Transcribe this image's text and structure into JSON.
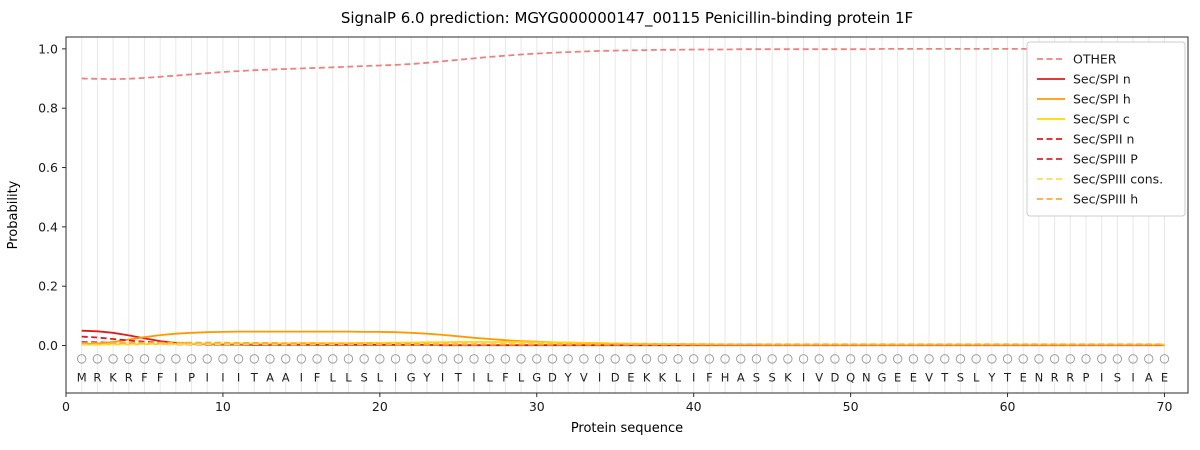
{
  "chart_data": {
    "type": "line",
    "title": "SignalP 6.0 prediction: MGYG000000147_00115 Penicillin-binding protein 1F",
    "xlabel": "Protein sequence",
    "ylabel": "Probability",
    "xlim": [
      0,
      71.5
    ],
    "ylim": [
      -0.16,
      1.04
    ],
    "xticks": [
      0,
      10,
      20,
      30,
      40,
      50,
      60,
      70
    ],
    "yticks": [
      0.0,
      0.2,
      0.4,
      0.6,
      0.8,
      1.0
    ],
    "grid": "vertical-per-residue",
    "grid_color": "#e8e8e8",
    "legend_position": "upper right",
    "x_start": 1,
    "marker_y": -0.045,
    "letter_y": -0.107,
    "sequence": "MRKRFFIPIIITAAIFLLSLIGYITILFLGDYVIDEKKLIFHASSKIVDQNGEEVTSLYTENRRPISIAE",
    "series": [
      {
        "name": "OTHER",
        "color": "#f08080",
        "dashed": true,
        "values": [
          0.9,
          0.899,
          0.898,
          0.899,
          0.902,
          0.906,
          0.91,
          0.914,
          0.918,
          0.922,
          0.925,
          0.928,
          0.93,
          0.932,
          0.934,
          0.936,
          0.938,
          0.94,
          0.942,
          0.944,
          0.946,
          0.949,
          0.953,
          0.958,
          0.963,
          0.968,
          0.973,
          0.977,
          0.981,
          0.984,
          0.987,
          0.989,
          0.991,
          0.993,
          0.994,
          0.995,
          0.996,
          0.997,
          0.997,
          0.998,
          0.998,
          0.998,
          0.999,
          0.999,
          0.999,
          0.999,
          0.999,
          0.999,
          0.999,
          0.999,
          0.999,
          1.0,
          1.0,
          1.0,
          1.0,
          1.0,
          1.0,
          1.0,
          1.0,
          1.0,
          1.0,
          1.0,
          1.0,
          1.0,
          1.0,
          1.0,
          1.0,
          1.0,
          1.0,
          1.0
        ]
      },
      {
        "name": "Sec/SPI n",
        "color": "#e31a1c",
        "dashed": false,
        "values": [
          0.05,
          0.048,
          0.043,
          0.034,
          0.024,
          0.015,
          0.009,
          0.006,
          0.004,
          0.003,
          0.003,
          0.002,
          0.002,
          0.002,
          0.002,
          0.002,
          0.002,
          0.002,
          0.002,
          0.002,
          0.002,
          0.002,
          0.002,
          0.001,
          0.001,
          0.001,
          0.001,
          0.001,
          0.001,
          0.001,
          0.001,
          0.001,
          0.001,
          0.001,
          0.001,
          0.001,
          0.001,
          0.001,
          0.001,
          0.001,
          0.001,
          0.001,
          0.001,
          0.001,
          0.001,
          0.001,
          0.001,
          0.001,
          0.001,
          0.001,
          0.001,
          0.001,
          0.001,
          0.001,
          0.001,
          0.001,
          0.001,
          0.001,
          0.001,
          0.001,
          0.001,
          0.001,
          0.001,
          0.001,
          0.001,
          0.001,
          0.001,
          0.001,
          0.001,
          0.001
        ]
      },
      {
        "name": "Sec/SPI h",
        "color": "#ff9900",
        "dashed": false,
        "values": [
          0.004,
          0.007,
          0.012,
          0.02,
          0.028,
          0.035,
          0.04,
          0.043,
          0.045,
          0.046,
          0.047,
          0.047,
          0.047,
          0.047,
          0.047,
          0.047,
          0.047,
          0.047,
          0.046,
          0.046,
          0.045,
          0.043,
          0.04,
          0.036,
          0.031,
          0.026,
          0.022,
          0.018,
          0.015,
          0.013,
          0.011,
          0.01,
          0.009,
          0.008,
          0.007,
          0.006,
          0.006,
          0.005,
          0.005,
          0.004,
          0.004,
          0.003,
          0.003,
          0.003,
          0.002,
          0.002,
          0.002,
          0.002,
          0.002,
          0.002,
          0.002,
          0.002,
          0.002,
          0.002,
          0.002,
          0.002,
          0.002,
          0.002,
          0.002,
          0.002,
          0.002,
          0.002,
          0.002,
          0.002,
          0.002,
          0.002,
          0.002,
          0.002,
          0.002,
          0.002
        ]
      },
      {
        "name": "Sec/SPI c",
        "color": "#ffd700",
        "dashed": false,
        "values": [
          0.003,
          0.003,
          0.004,
          0.004,
          0.005,
          0.005,
          0.006,
          0.006,
          0.006,
          0.007,
          0.007,
          0.007,
          0.007,
          0.007,
          0.008,
          0.008,
          0.008,
          0.008,
          0.009,
          0.009,
          0.01,
          0.01,
          0.011,
          0.011,
          0.012,
          0.012,
          0.012,
          0.012,
          0.012,
          0.011,
          0.011,
          0.01,
          0.009,
          0.008,
          0.007,
          0.006,
          0.006,
          0.005,
          0.005,
          0.004,
          0.004,
          0.003,
          0.003,
          0.003,
          0.003,
          0.003,
          0.003,
          0.003,
          0.003,
          0.003,
          0.003,
          0.003,
          0.003,
          0.003,
          0.003,
          0.003,
          0.003,
          0.003,
          0.003,
          0.003,
          0.003,
          0.003,
          0.003,
          0.003,
          0.003,
          0.003,
          0.003,
          0.003,
          0.003,
          0.003
        ]
      },
      {
        "name": "Sec/SPII n",
        "color": "#e31a1c",
        "dashed": true,
        "values": [
          0.03,
          0.027,
          0.022,
          0.017,
          0.013,
          0.01,
          0.008,
          0.007,
          0.006,
          0.005,
          0.005,
          0.004,
          0.004,
          0.004,
          0.003,
          0.003,
          0.003,
          0.003,
          0.003,
          0.003,
          0.002,
          0.002,
          0.002,
          0.002,
          0.002,
          0.002,
          0.002,
          0.002,
          0.002,
          0.002,
          0.002,
          0.002,
          0.002,
          0.002,
          0.002,
          0.002,
          0.002,
          0.002,
          0.002,
          0.002,
          0.002,
          0.002,
          0.002,
          0.002,
          0.002,
          0.002,
          0.002,
          0.002,
          0.002,
          0.002,
          0.002,
          0.002,
          0.002,
          0.002,
          0.002,
          0.002,
          0.002,
          0.002,
          0.002,
          0.002,
          0.002,
          0.002,
          0.002,
          0.002,
          0.002,
          0.002,
          0.002,
          0.002,
          0.002,
          0.002
        ]
      },
      {
        "name": "Sec/SPIII P",
        "color": "#d62728",
        "dashed": true,
        "values": [
          0.012,
          0.011,
          0.009,
          0.007,
          0.006,
          0.005,
          0.004,
          0.004,
          0.003,
          0.003,
          0.003,
          0.003,
          0.003,
          0.003,
          0.003,
          0.002,
          0.002,
          0.002,
          0.002,
          0.002,
          0.002,
          0.002,
          0.002,
          0.002,
          0.002,
          0.002,
          0.002,
          0.002,
          0.002,
          0.002,
          0.002,
          0.002,
          0.002,
          0.002,
          0.002,
          0.002,
          0.002,
          0.002,
          0.002,
          0.002,
          0.002,
          0.002,
          0.002,
          0.002,
          0.002,
          0.002,
          0.002,
          0.002,
          0.002,
          0.002,
          0.002,
          0.002,
          0.002,
          0.002,
          0.002,
          0.002,
          0.002,
          0.002,
          0.002,
          0.002,
          0.002,
          0.002,
          0.002,
          0.002,
          0.002,
          0.002,
          0.002,
          0.002,
          0.002,
          0.002
        ]
      },
      {
        "name": "Sec/SPIII cons.",
        "color": "#ffdd55",
        "dashed": true,
        "values": [
          0.005,
          0.005,
          0.005,
          0.005,
          0.005,
          0.005,
          0.005,
          0.005,
          0.005,
          0.005,
          0.005,
          0.005,
          0.004,
          0.004,
          0.004,
          0.004,
          0.004,
          0.004,
          0.004,
          0.004,
          0.003,
          0.003,
          0.003,
          0.003,
          0.003,
          0.003,
          0.003,
          0.003,
          0.003,
          0.003,
          0.003,
          0.003,
          0.003,
          0.003,
          0.003,
          0.003,
          0.003,
          0.003,
          0.003,
          0.003,
          0.003,
          0.003,
          0.003,
          0.003,
          0.003,
          0.003,
          0.003,
          0.003,
          0.003,
          0.003,
          0.003,
          0.003,
          0.003,
          0.003,
          0.003,
          0.003,
          0.003,
          0.003,
          0.003,
          0.003,
          0.003,
          0.003,
          0.003,
          0.003,
          0.003,
          0.003,
          0.003,
          0.003,
          0.003,
          0.003
        ]
      },
      {
        "name": "Sec/SPIII h",
        "color": "#ffaa33",
        "dashed": true,
        "values": [
          0.008,
          0.008,
          0.009,
          0.009,
          0.01,
          0.01,
          0.01,
          0.01,
          0.01,
          0.01,
          0.009,
          0.009,
          0.009,
          0.008,
          0.008,
          0.008,
          0.007,
          0.007,
          0.007,
          0.006,
          0.006,
          0.006,
          0.005,
          0.005,
          0.005,
          0.005,
          0.004,
          0.004,
          0.004,
          0.004,
          0.004,
          0.004,
          0.004,
          0.004,
          0.004,
          0.004,
          0.004,
          0.004,
          0.004,
          0.004,
          0.004,
          0.004,
          0.004,
          0.004,
          0.004,
          0.004,
          0.004,
          0.004,
          0.004,
          0.004,
          0.004,
          0.004,
          0.004,
          0.004,
          0.004,
          0.004,
          0.004,
          0.004,
          0.004,
          0.004,
          0.004,
          0.004,
          0.004,
          0.004,
          0.004,
          0.004,
          0.004,
          0.004,
          0.004,
          0.004
        ]
      }
    ]
  }
}
